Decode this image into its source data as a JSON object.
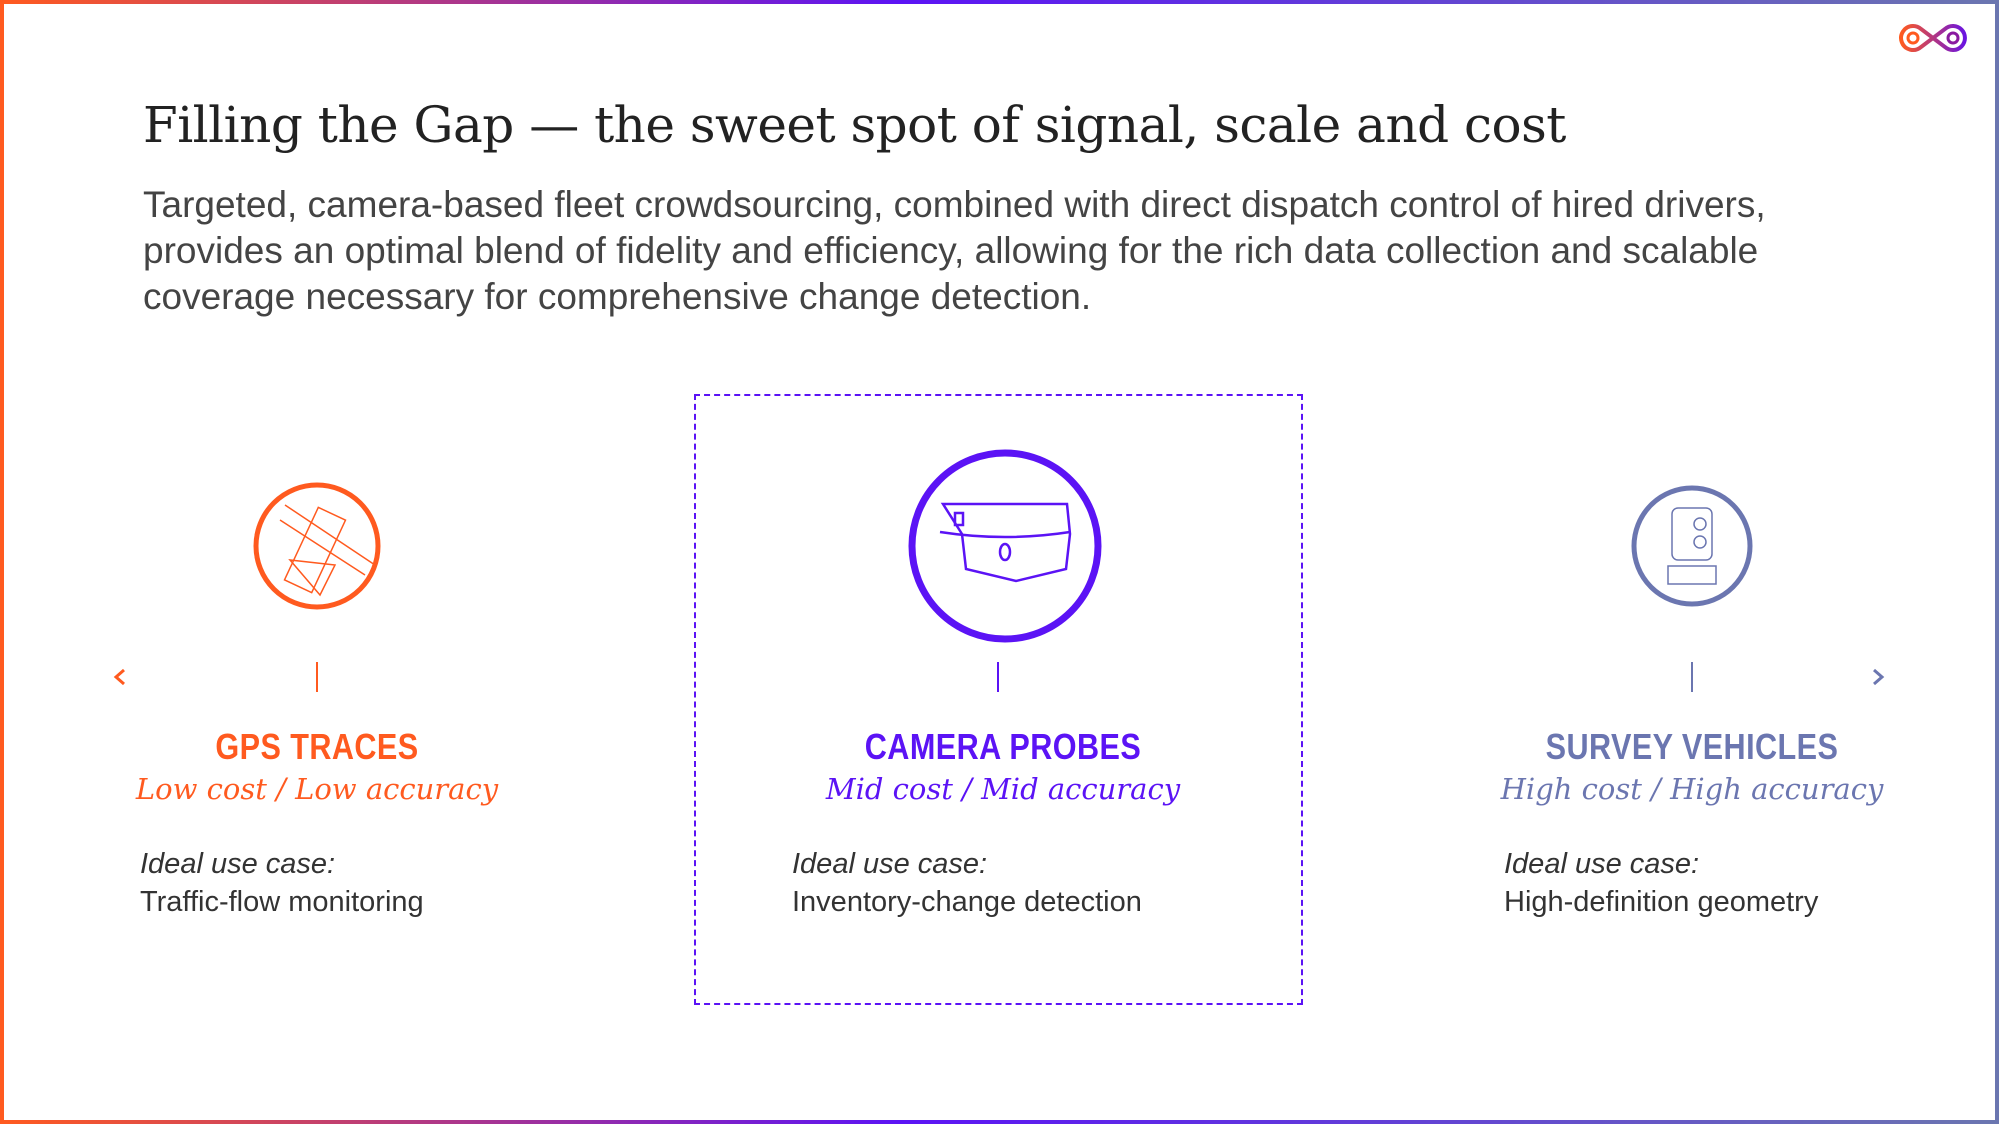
{
  "title": "Filling the Gap — the sweet spot of signal, scale and cost",
  "description": "Targeted, camera-based fleet crowdsourcing, combined with direct dispatch control of hired drivers, provides an optimal blend of fidelity and efficiency, allowing for the rich data collection and scalable coverage necessary for comprehensive change detection.",
  "colors": {
    "gps": "#ff5a1f",
    "camera": "#5b13f5",
    "survey": "#6b76b0"
  },
  "options": [
    {
      "name": "GPS TRACES",
      "tagline": "Low cost / Low accuracy",
      "use_label": "Ideal use case:",
      "use_value": "Traffic-flow monitoring",
      "icon": "phone-mount-icon"
    },
    {
      "name": "CAMERA PROBES",
      "tagline": "Mid cost / Mid accuracy",
      "use_label": "Ideal use case:",
      "use_value": "Inventory-change detection",
      "icon": "dashcam-windshield-icon"
    },
    {
      "name": "SURVEY VEHICLES",
      "tagline": "High cost / High accuracy",
      "use_label": "Ideal use case:",
      "use_value": "High-definition geometry",
      "icon": "survey-sensor-icon"
    }
  ]
}
